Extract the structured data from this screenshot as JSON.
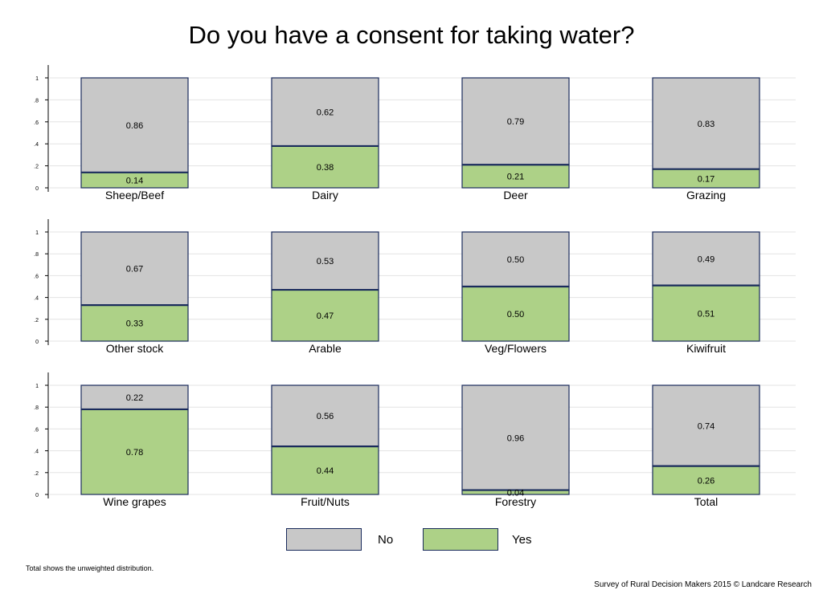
{
  "title": "Do you have a consent for taking water?",
  "legend": [
    {
      "label": "No",
      "color": "#c8c8c8"
    },
    {
      "label": "Yes",
      "color": "#add187"
    }
  ],
  "note": "Total shows the unweighted distribution.",
  "source": "Survey of Rural Decision Makers 2015 © Landcare Research",
  "chart_data": {
    "type": "bar",
    "stacked": true,
    "layout": "small-multiples 3x4",
    "ylim": [
      0,
      1
    ],
    "yticks": [
      "0",
      ".2",
      ".4",
      ".6",
      ".8",
      "1"
    ],
    "grid": true,
    "border_color": "#1a2b5c",
    "categories": [
      "Sheep/Beef",
      "Dairy",
      "Deer",
      "Grazing",
      "Other stock",
      "Arable",
      "Veg/Flowers",
      "Kiwifruit",
      "Wine grapes",
      "Fruit/Nuts",
      "Forestry",
      "Total"
    ],
    "series": [
      {
        "name": "No",
        "color": "#c8c8c8",
        "values": [
          0.86,
          0.62,
          0.79,
          0.83,
          0.67,
          0.53,
          0.5,
          0.49,
          0.22,
          0.56,
          0.96,
          0.74
        ]
      },
      {
        "name": "Yes",
        "color": "#add187",
        "values": [
          0.14,
          0.38,
          0.21,
          0.17,
          0.33,
          0.47,
          0.5,
          0.51,
          0.78,
          0.44,
          0.04,
          0.26
        ]
      }
    ],
    "value_labels": {
      "No": [
        "0.86",
        "0.62",
        "0.79",
        "0.83",
        "0.67",
        "0.53",
        "0.50",
        "0.49",
        "0.22",
        "0.56",
        "0.96",
        "0.74"
      ],
      "Yes": [
        "0.14",
        "0.38",
        "0.21",
        "0.17",
        "0.33",
        "0.47",
        "0.50",
        "0.51",
        "0.78",
        "0.44",
        "0.04",
        "0.26"
      ]
    }
  }
}
